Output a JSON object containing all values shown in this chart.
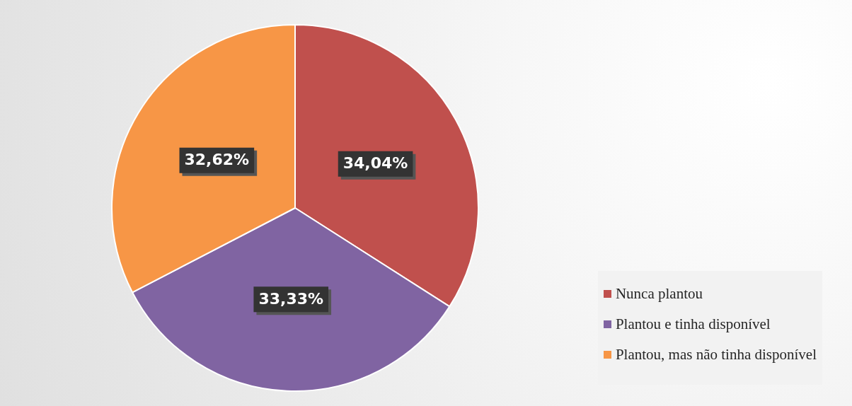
{
  "chart_data": {
    "type": "pie",
    "categories": [
      "Nunca plantou",
      "Plantou e tinha disponível",
      "Plantou, mas não tinha disponível"
    ],
    "values": [
      34.04,
      33.33,
      32.62
    ],
    "colors": [
      "#c0504d",
      "#8064a2",
      "#f79646"
    ],
    "value_labels": [
      "34,04%",
      "33,33%",
      "32,62%"
    ],
    "legend": "bottom right"
  }
}
